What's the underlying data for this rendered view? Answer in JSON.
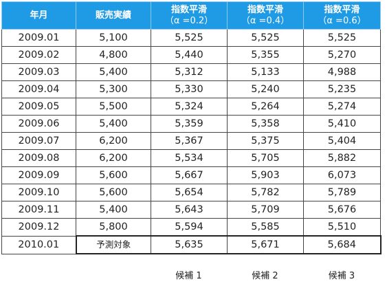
{
  "header": {
    "month": "年月",
    "sales": "販売実績",
    "s1_title": "指数平滑",
    "s1_param": "（α =0.2）",
    "s2_title": "指数平滑",
    "s2_param": "（α =0.4）",
    "s3_title": "指数平滑",
    "s3_param": "（α =0.6）"
  },
  "rows": [
    {
      "month": "2009.01",
      "sales": "5,100",
      "a02": "5,525",
      "a04": "5,525",
      "a06": "5,525"
    },
    {
      "month": "2009.02",
      "sales": "4,800",
      "a02": "5,440",
      "a04": "5,355",
      "a06": "5,270"
    },
    {
      "month": "2009.03",
      "sales": "5,400",
      "a02": "5,312",
      "a04": "5,133",
      "a06": "4,988"
    },
    {
      "month": "2009.04",
      "sales": "5,300",
      "a02": "5,330",
      "a04": "5,240",
      "a06": "5,235"
    },
    {
      "month": "2009.05",
      "sales": "5,500",
      "a02": "5,324",
      "a04": "5,264",
      "a06": "5,274"
    },
    {
      "month": "2009.06",
      "sales": "5,400",
      "a02": "5,359",
      "a04": "5,358",
      "a06": "5,410"
    },
    {
      "month": "2009.07",
      "sales": "6,200",
      "a02": "5,367",
      "a04": "5,375",
      "a06": "5,404"
    },
    {
      "month": "2009.08",
      "sales": "6,200",
      "a02": "5,534",
      "a04": "5,705",
      "a06": "5,882"
    },
    {
      "month": "2009.09",
      "sales": "5,600",
      "a02": "5,667",
      "a04": "5,903",
      "a06": "6,073"
    },
    {
      "month": "2009.10",
      "sales": "5,600",
      "a02": "5,654",
      "a04": "5,782",
      "a06": "5,789"
    },
    {
      "month": "2009.11",
      "sales": "5,400",
      "a02": "5,643",
      "a04": "5,709",
      "a06": "5,676"
    },
    {
      "month": "2009.12",
      "sales": "5,800",
      "a02": "5,594",
      "a04": "5,585",
      "a06": "5,510"
    },
    {
      "month": "2010.01",
      "sales": "予測対象",
      "a02": "5,635",
      "a04": "5,671",
      "a06": "5,684"
    }
  ],
  "candidates": [
    "候補 1",
    "候補 2",
    "候補 3"
  ],
  "colors": {
    "header_bg": "#1f9ae5",
    "header_text": "#ffffff",
    "border": "#444444"
  }
}
